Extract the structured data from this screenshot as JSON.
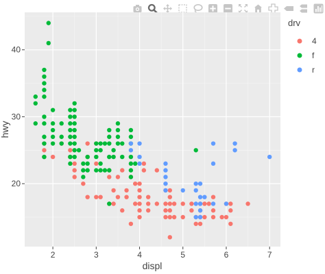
{
  "toolbar": {
    "buttons": [
      {
        "name": "camera-icon",
        "title": "Download plot as a png"
      },
      {
        "name": "zoom-icon",
        "title": "Zoom"
      },
      {
        "name": "pan-icon",
        "title": "Pan"
      },
      {
        "name": "box-select-icon",
        "title": "Box Select"
      },
      {
        "name": "lasso-select-icon",
        "title": "Lasso Select"
      },
      {
        "name": "zoom-in-icon",
        "title": "Zoom in"
      },
      {
        "name": "zoom-out-icon",
        "title": "Zoom out"
      },
      {
        "name": "autoscale-icon",
        "title": "Autoscale"
      },
      {
        "name": "reset-axes-icon",
        "title": "Reset axes"
      },
      {
        "name": "spike-lines-icon",
        "title": "Toggle Spike Lines"
      },
      {
        "name": "hover-closest-icon",
        "title": "Show closest data on hover"
      },
      {
        "name": "hover-compare-icon",
        "title": "Compare data on hover"
      },
      {
        "name": "plotly-logo-icon",
        "title": "Produced with Plotly"
      }
    ],
    "active": "zoom-icon",
    "icon_color": "#c6c6c6",
    "active_color": "#6b6b6b"
  },
  "chart_data": {
    "type": "scatter",
    "xlabel": "displ",
    "ylabel": "hwy",
    "xlim": [
      1.35,
      7.25
    ],
    "ylim": [
      10.6,
      45.6
    ],
    "xticks": [
      2,
      3,
      4,
      5,
      6,
      7
    ],
    "yticks": [
      20,
      30,
      40
    ],
    "grid": true,
    "panel_color": "#ebebeb",
    "legend": {
      "title": "drv",
      "position": "right"
    },
    "series": [
      {
        "name": "4",
        "color": "#F8766D",
        "points": [
          [
            1.8,
            26
          ],
          [
            1.8,
            25
          ],
          [
            2.0,
            24
          ],
          [
            2.2,
            26
          ],
          [
            2.4,
            25
          ],
          [
            2.4,
            24
          ],
          [
            2.5,
            23
          ],
          [
            2.5,
            22
          ],
          [
            2.5,
            21
          ],
          [
            2.7,
            20
          ],
          [
            2.8,
            26
          ],
          [
            2.8,
            24
          ],
          [
            3.0,
            26
          ],
          [
            3.0,
            23
          ],
          [
            3.3,
            22
          ],
          [
            3.3,
            21
          ],
          [
            3.4,
            17
          ],
          [
            3.4,
            19
          ],
          [
            3.5,
            21
          ],
          [
            3.6,
            22
          ],
          [
            3.7,
            19
          ],
          [
            3.7,
            18
          ],
          [
            3.9,
            17
          ],
          [
            3.9,
            20
          ],
          [
            4.0,
            20
          ],
          [
            4.0,
            19
          ],
          [
            4.0,
            18
          ],
          [
            4.0,
            17
          ],
          [
            4.0,
            15
          ],
          [
            4.2,
            17
          ],
          [
            4.2,
            16
          ],
          [
            4.4,
            17
          ],
          [
            4.6,
            19
          ],
          [
            4.6,
            17
          ],
          [
            4.6,
            16
          ],
          [
            4.7,
            19
          ],
          [
            4.7,
            18
          ],
          [
            4.7,
            17
          ],
          [
            4.7,
            16
          ],
          [
            4.7,
            15
          ],
          [
            4.7,
            12
          ],
          [
            5.0,
            17
          ],
          [
            5.2,
            17
          ],
          [
            5.2,
            16
          ],
          [
            5.3,
            15
          ],
          [
            5.4,
            17
          ],
          [
            5.4,
            16
          ],
          [
            5.4,
            15
          ],
          [
            5.4,
            14
          ],
          [
            5.6,
            17
          ],
          [
            5.7,
            16
          ],
          [
            5.7,
            15
          ],
          [
            5.9,
            15
          ],
          [
            6.1,
            14
          ],
          [
            6.5,
            17
          ],
          [
            6.1,
            16
          ],
          [
            6.0,
            17
          ],
          [
            6.0,
            15
          ],
          [
            3.8,
            21
          ],
          [
            4.0,
            16
          ],
          [
            4.1,
            23
          ],
          [
            4.1,
            22
          ],
          [
            4.4,
            22
          ],
          [
            3.1,
            18
          ],
          [
            3.0,
            18
          ],
          [
            3.8,
            14
          ],
          [
            3.3,
            17
          ],
          [
            2.8,
            18
          ],
          [
            3.5,
            18
          ],
          [
            3.6,
            16
          ],
          [
            4.2,
            18
          ],
          [
            4.6,
            15
          ],
          [
            4.8,
            17
          ],
          [
            4.8,
            15
          ],
          [
            5.0,
            15
          ],
          [
            5.3,
            14
          ],
          [
            5.5,
            17
          ],
          [
            5.5,
            15
          ],
          [
            5.7,
            18
          ],
          [
            6.1,
            17
          ],
          [
            1.8,
            24
          ]
        ]
      },
      {
        "name": "f",
        "color": "#00BA38",
        "points": [
          [
            1.6,
            33
          ],
          [
            1.6,
            32
          ],
          [
            1.6,
            29
          ],
          [
            1.8,
            29
          ],
          [
            1.8,
            30
          ],
          [
            1.8,
            34
          ],
          [
            1.8,
            35
          ],
          [
            1.8,
            36
          ],
          [
            1.8,
            37
          ],
          [
            1.8,
            33
          ],
          [
            1.8,
            27
          ],
          [
            1.8,
            26
          ],
          [
            1.8,
            24
          ],
          [
            1.9,
            44
          ],
          [
            1.9,
            41
          ],
          [
            2.0,
            31
          ],
          [
            2.0,
            29
          ],
          [
            2.0,
            28
          ],
          [
            2.0,
            27
          ],
          [
            2.0,
            26
          ],
          [
            2.2,
            29
          ],
          [
            2.2,
            27
          ],
          [
            2.2,
            26
          ],
          [
            2.4,
            31
          ],
          [
            2.4,
            30
          ],
          [
            2.4,
            29
          ],
          [
            2.4,
            28
          ],
          [
            2.4,
            27
          ],
          [
            2.4,
            24
          ],
          [
            2.4,
            23
          ],
          [
            2.5,
            32
          ],
          [
            2.5,
            31
          ],
          [
            2.5,
            30
          ],
          [
            2.5,
            29
          ],
          [
            2.5,
            28
          ],
          [
            2.5,
            27
          ],
          [
            2.5,
            26
          ],
          [
            2.5,
            25
          ],
          [
            2.5,
            24
          ],
          [
            2.7,
            23
          ],
          [
            2.7,
            22
          ],
          [
            2.7,
            21
          ],
          [
            2.8,
            24
          ],
          [
            2.8,
            23
          ],
          [
            2.8,
            22
          ],
          [
            3.0,
            26
          ],
          [
            3.0,
            25
          ],
          [
            3.0,
            24
          ],
          [
            3.0,
            22
          ],
          [
            3.1,
            26
          ],
          [
            3.1,
            25
          ],
          [
            3.1,
            23
          ],
          [
            3.1,
            22
          ],
          [
            3.3,
            28
          ],
          [
            3.3,
            27
          ],
          [
            3.3,
            26
          ],
          [
            3.3,
            24
          ],
          [
            3.3,
            22
          ],
          [
            3.4,
            25
          ],
          [
            3.4,
            24
          ],
          [
            3.5,
            29
          ],
          [
            3.5,
            28
          ],
          [
            3.5,
            27
          ],
          [
            3.5,
            26
          ],
          [
            3.6,
            26
          ],
          [
            3.6,
            24
          ],
          [
            3.8,
            28
          ],
          [
            3.8,
            27
          ],
          [
            3.8,
            26
          ],
          [
            3.8,
            24
          ],
          [
            3.8,
            23
          ],
          [
            3.8,
            22
          ],
          [
            3.8,
            21
          ],
          [
            3.3,
            17
          ],
          [
            5.3,
            25
          ],
          [
            2.4,
            26
          ],
          [
            2.6,
            25
          ],
          [
            3.2,
            22
          ],
          [
            3.9,
            23
          ],
          [
            3.2,
            26
          ]
        ]
      },
      {
        "name": "r",
        "color": "#619CFF",
        "points": [
          [
            3.8,
            26
          ],
          [
            3.8,
            25
          ],
          [
            4.0,
            26
          ],
          [
            4.0,
            24
          ],
          [
            4.0,
            23
          ],
          [
            4.6,
            23
          ],
          [
            4.6,
            22
          ],
          [
            4.6,
            21
          ],
          [
            4.6,
            20
          ],
          [
            4.6,
            19
          ],
          [
            5.3,
            20
          ],
          [
            5.3,
            19
          ],
          [
            5.3,
            17
          ],
          [
            5.3,
            15
          ],
          [
            5.4,
            20
          ],
          [
            5.4,
            18
          ],
          [
            5.4,
            17
          ],
          [
            5.4,
            16
          ],
          [
            5.4,
            15
          ],
          [
            5.7,
            26
          ],
          [
            5.7,
            23
          ],
          [
            5.7,
            17
          ],
          [
            6.2,
            26
          ],
          [
            6.2,
            25
          ],
          [
            7.0,
            24
          ],
          [
            6.0,
            17
          ],
          [
            5.5,
            18
          ],
          [
            5.0,
            19
          ]
        ]
      }
    ]
  }
}
